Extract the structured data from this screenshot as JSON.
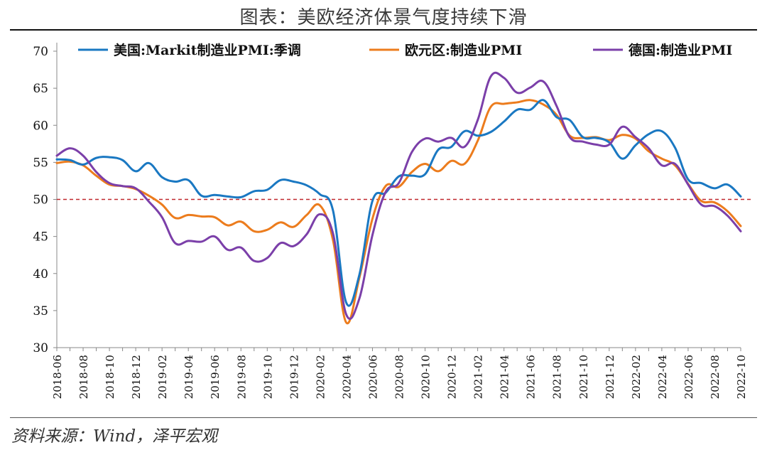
{
  "title": "图表：美欧经济体景气度持续下滑",
  "source": "资料来源：Wind，泽平宏观",
  "chart_data": {
    "type": "line",
    "title": "",
    "xlabel": "",
    "ylabel": "",
    "ylim": [
      30,
      70
    ],
    "yticks": [
      30,
      35,
      40,
      45,
      50,
      55,
      60,
      65,
      70
    ],
    "x": [
      "2018-06",
      "2018-07",
      "2018-08",
      "2018-09",
      "2018-10",
      "2018-11",
      "2018-12",
      "2019-01",
      "2019-02",
      "2019-03",
      "2019-04",
      "2019-05",
      "2019-06",
      "2019-07",
      "2019-08",
      "2019-09",
      "2019-10",
      "2019-11",
      "2019-12",
      "2020-01",
      "2020-02",
      "2020-03",
      "2020-04",
      "2020-05",
      "2020-06",
      "2020-07",
      "2020-08",
      "2020-09",
      "2020-10",
      "2020-11",
      "2020-12",
      "2021-01",
      "2021-02",
      "2021-03",
      "2021-04",
      "2021-05",
      "2021-06",
      "2021-07",
      "2021-08",
      "2021-09",
      "2021-10",
      "2021-11",
      "2021-12",
      "2022-01",
      "2022-02",
      "2022-03",
      "2022-04",
      "2022-05",
      "2022-06",
      "2022-07",
      "2022-08",
      "2022-09",
      "2022-10"
    ],
    "xtick_labels": [
      "2018-06",
      "2018-08",
      "2018-10",
      "2018-12",
      "2019-02",
      "2019-04",
      "2019-06",
      "2019-08",
      "2019-10",
      "2019-12",
      "2020-02",
      "2020-04",
      "2020-06",
      "2020-08",
      "2020-10",
      "2020-12",
      "2021-02",
      "2021-04",
      "2021-06",
      "2021-08",
      "2021-10",
      "2021-12",
      "2022-02",
      "2022-04",
      "2022-06",
      "2022-08",
      "2022-10"
    ],
    "reference_line": {
      "y": 50,
      "color": "#c0282d",
      "style": "dashed"
    },
    "legend_position": "top",
    "series": [
      {
        "name": "美国:Markit制造业PMI:季调",
        "color": "#1a78c2",
        "values": [
          55.4,
          55.3,
          54.7,
          55.6,
          55.7,
          55.3,
          53.8,
          54.9,
          53.0,
          52.4,
          52.6,
          50.5,
          50.6,
          50.4,
          50.3,
          51.1,
          51.3,
          52.6,
          52.4,
          51.9,
          50.7,
          48.5,
          36.1,
          39.8,
          49.8,
          50.9,
          53.1,
          53.2,
          53.4,
          56.7,
          57.1,
          59.2,
          58.6,
          59.1,
          60.5,
          62.1,
          62.1,
          63.4,
          61.1,
          60.7,
          58.4,
          58.3,
          57.7,
          55.5,
          57.3,
          58.8,
          59.2,
          57.0,
          52.7,
          52.2,
          51.5,
          52.0,
          50.4
        ]
      },
      {
        "name": "欧元区:制造业PMI",
        "color": "#ec7c1d",
        "values": [
          54.9,
          55.1,
          54.6,
          53.2,
          52.0,
          51.8,
          51.4,
          50.5,
          49.3,
          47.5,
          47.9,
          47.7,
          47.6,
          46.5,
          47.0,
          45.7,
          45.9,
          46.9,
          46.3,
          47.9,
          49.2,
          44.5,
          33.4,
          39.4,
          47.4,
          51.8,
          51.7,
          53.7,
          54.8,
          53.8,
          55.2,
          54.8,
          57.9,
          62.5,
          62.9,
          63.1,
          63.4,
          62.8,
          61.4,
          58.6,
          58.3,
          58.4,
          58.0,
          58.7,
          58.2,
          56.5,
          55.5,
          54.6,
          52.1,
          49.8,
          49.6,
          48.4,
          46.4
        ]
      },
      {
        "name": "德国:制造业PMI",
        "color": "#7b3fa9",
        "values": [
          55.9,
          56.9,
          55.9,
          53.7,
          52.2,
          51.8,
          51.5,
          49.7,
          47.6,
          44.1,
          44.4,
          44.3,
          45.0,
          43.2,
          43.5,
          41.7,
          42.1,
          44.1,
          43.7,
          45.3,
          48.0,
          45.4,
          34.5,
          36.6,
          45.2,
          51.0,
          52.2,
          56.4,
          58.2,
          57.8,
          58.3,
          57.1,
          60.7,
          66.6,
          66.4,
          64.4,
          65.1,
          65.9,
          62.6,
          58.4,
          57.8,
          57.4,
          57.4,
          59.8,
          58.4,
          56.9,
          54.6,
          54.8,
          52.0,
          49.3,
          49.1,
          47.8,
          45.7
        ]
      }
    ]
  }
}
